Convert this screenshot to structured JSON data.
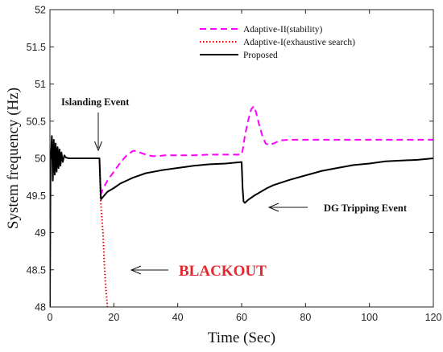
{
  "chart_data": {
    "type": "line",
    "xlabel": "Time (Sec)",
    "ylabel": "System frequency (Hz)",
    "xlim": [
      0,
      120
    ],
    "ylim": [
      48,
      52
    ],
    "xticks": [
      "0",
      "20",
      "40",
      "60",
      "80",
      "100",
      "120"
    ],
    "yticks": [
      "48",
      "48.5",
      "49",
      "49.5",
      "50",
      "50.5",
      "51",
      "51.5",
      "52"
    ],
    "grid": false,
    "legend_position": "top-right",
    "colors": {
      "adaptive2": "#ff00ff",
      "adaptive1": "#e00000",
      "proposed": "#000000"
    },
    "series": [
      {
        "name": "Adaptive-II(stability)",
        "style": "dashed",
        "x": [
          15.8,
          16.5,
          18,
          20,
          22,
          24,
          26,
          27,
          28,
          30,
          32,
          34,
          36,
          38,
          40,
          45,
          50,
          55,
          60,
          60.5,
          61,
          62,
          63,
          63.8,
          64.5,
          65.5,
          66.5,
          67.5,
          68.5,
          70,
          72,
          75,
          80,
          90,
          100,
          110,
          120
        ],
        "y": [
          49.5,
          49.58,
          49.7,
          49.82,
          49.94,
          50.04,
          50.1,
          50.1,
          50.08,
          50.05,
          50.03,
          50.03,
          50.04,
          50.04,
          50.04,
          50.04,
          50.05,
          50.05,
          50.05,
          50.15,
          50.3,
          50.5,
          50.66,
          50.7,
          50.62,
          50.45,
          50.3,
          50.2,
          50.18,
          50.2,
          50.24,
          50.25,
          50.25,
          50.25,
          50.25,
          50.25,
          50.25
        ]
      },
      {
        "name": "Adaptive-I(exhaustive search)",
        "style": "dotted",
        "x": [
          15.5,
          15.8,
          16,
          16.6,
          17,
          17.5,
          18
        ],
        "y": [
          50,
          49.5,
          49.35,
          49,
          48.6,
          48.25,
          48
        ]
      },
      {
        "name": "Proposed",
        "style": "solid",
        "x": [
          0,
          0.2,
          0.3,
          0.6,
          0.9,
          1.2,
          1.5,
          1.8,
          2.1,
          2.4,
          2.7,
          3.0,
          3.3,
          3.6,
          4.0,
          4.5,
          5,
          6,
          8,
          10,
          12,
          14,
          15.5,
          15.9,
          16,
          17,
          18,
          20,
          22,
          24,
          26,
          28,
          30,
          35,
          40,
          45,
          50,
          55,
          60,
          60.3,
          60.6,
          61,
          62,
          64,
          66,
          68,
          70,
          75,
          80,
          85,
          90,
          95,
          100,
          105,
          110,
          115,
          120
        ],
        "y": [
          48,
          50.1,
          50.0,
          50.3,
          49.7,
          50.25,
          49.78,
          50.2,
          49.82,
          50.15,
          49.87,
          50.12,
          49.9,
          50.08,
          49.95,
          50.04,
          50.01,
          50,
          50,
          50,
          50,
          50,
          50,
          49.5,
          49.45,
          49.5,
          49.55,
          49.6,
          49.66,
          49.7,
          49.74,
          49.77,
          49.8,
          49.84,
          49.87,
          49.9,
          49.92,
          49.93,
          49.95,
          49.6,
          49.42,
          49.4,
          49.44,
          49.5,
          49.55,
          49.6,
          49.64,
          49.71,
          49.77,
          49.83,
          49.87,
          49.91,
          49.93,
          49.96,
          49.97,
          49.98,
          50
        ]
      }
    ],
    "annotations": [
      {
        "text": "Islanding Event",
        "arrow_to": [
          15.6,
          50
        ]
      },
      {
        "text": "DG Tripping Event",
        "arrow_to": [
          61,
          49.46
        ]
      },
      {
        "text": "BLACKOUT",
        "arrow_to": [
          17.5,
          48.45
        ]
      }
    ]
  }
}
